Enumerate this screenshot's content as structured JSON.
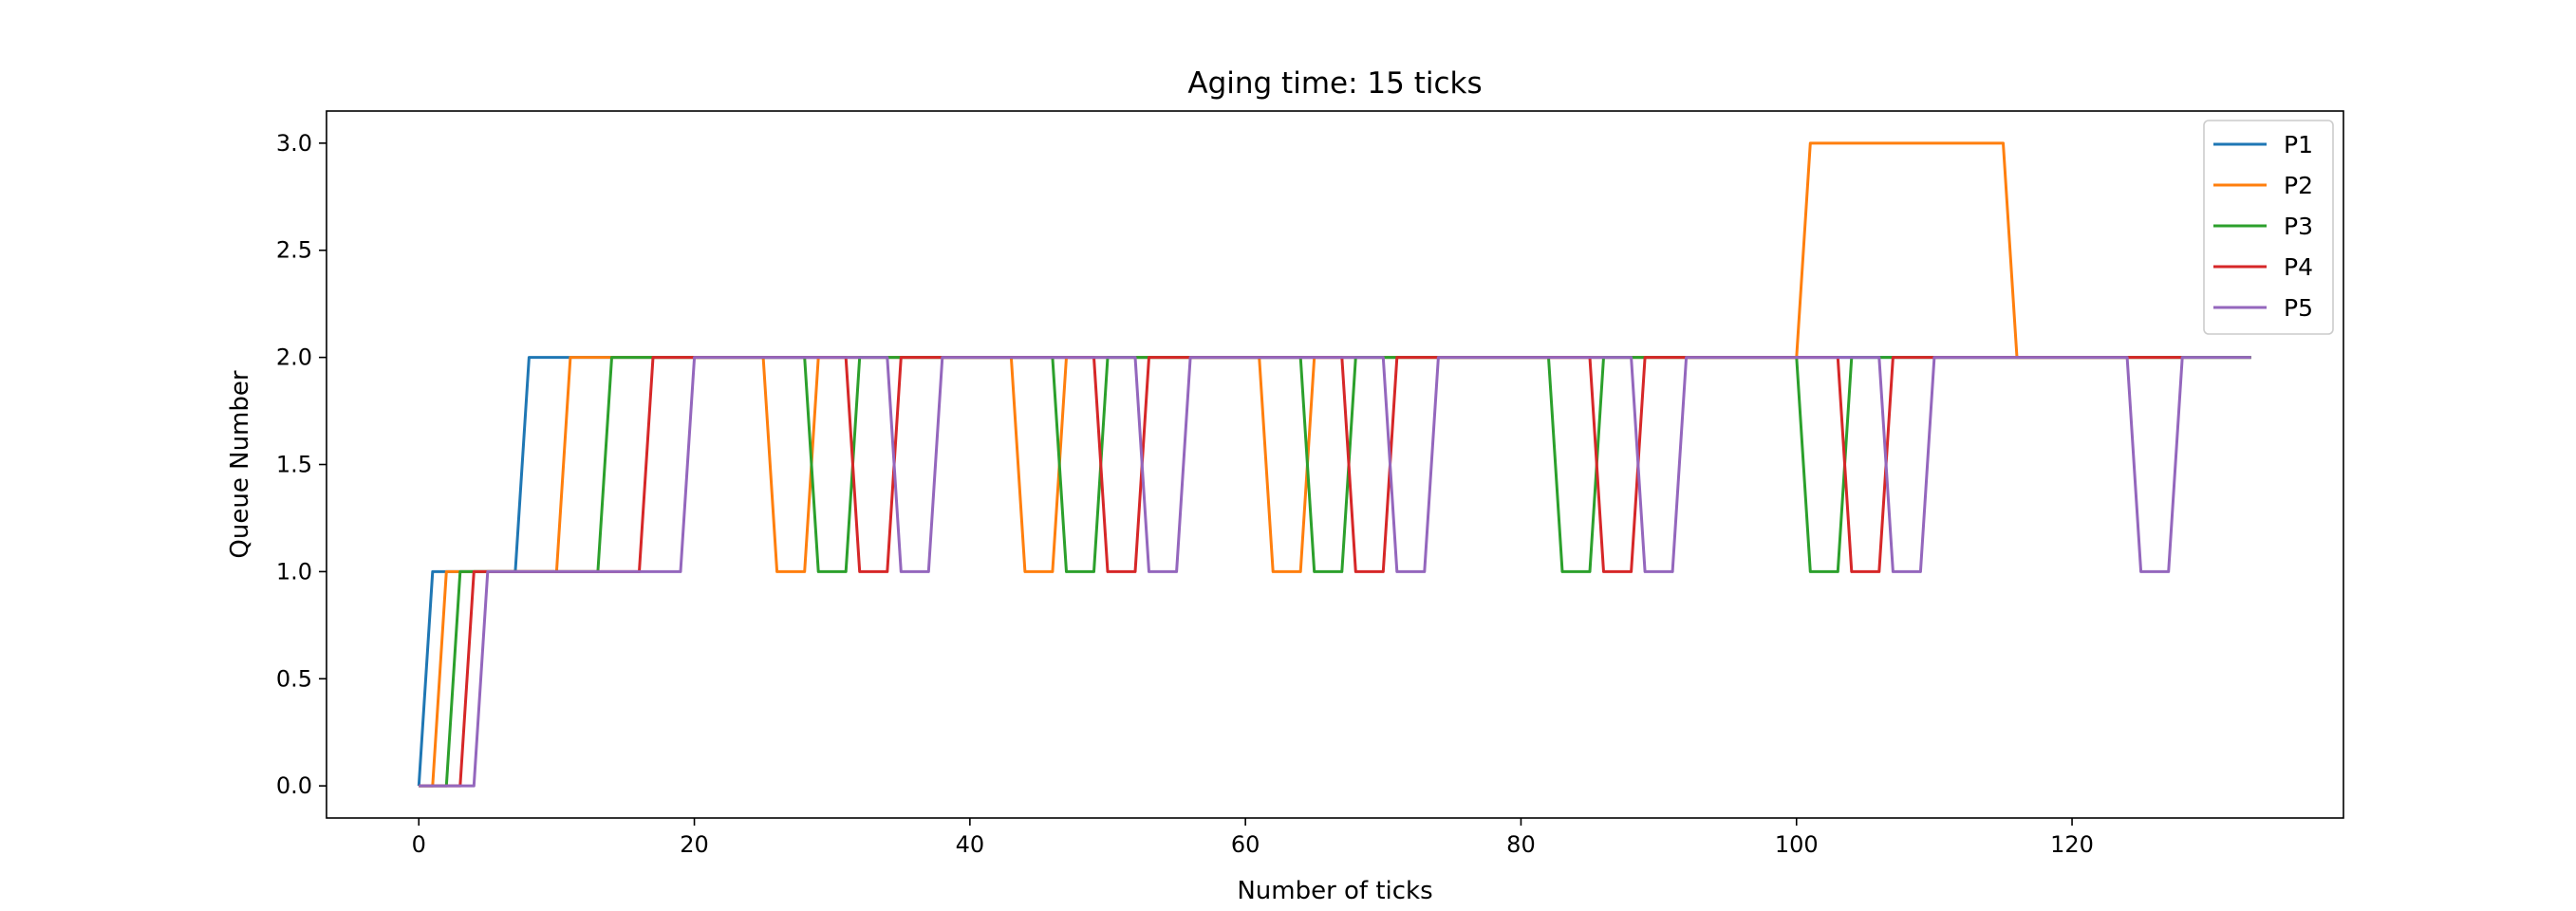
{
  "chart_data": {
    "type": "line",
    "title": "Aging time: 15 ticks",
    "xlabel": "Number of ticks",
    "ylabel": "Queue Number",
    "xlim": [
      -6.7,
      139.7
    ],
    "ylim": [
      -0.15,
      3.15
    ],
    "xticks": [
      0,
      20,
      40,
      60,
      80,
      100,
      120
    ],
    "yticks": [
      0.0,
      0.5,
      1.0,
      1.5,
      2.0,
      2.5,
      3.0
    ],
    "xtick_labels": [
      "0",
      "20",
      "40",
      "60",
      "80",
      "100",
      "120"
    ],
    "ytick_labels": [
      "0.0",
      "0.5",
      "1.0",
      "1.5",
      "2.0",
      "2.5",
      "3.0"
    ],
    "grid": false,
    "legend_position": "upper right",
    "series": [
      {
        "name": "P1",
        "color": "#1f77b4",
        "points": [
          [
            0,
            0
          ],
          [
            1,
            1
          ],
          [
            7,
            1
          ],
          [
            8,
            2
          ],
          [
            133,
            2
          ]
        ]
      },
      {
        "name": "P2",
        "color": "#ff7f0e",
        "points": [
          [
            0,
            0
          ],
          [
            1,
            0
          ],
          [
            2,
            1
          ],
          [
            10,
            1
          ],
          [
            11,
            2
          ],
          [
            25,
            2
          ],
          [
            26,
            1
          ],
          [
            28,
            1
          ],
          [
            29,
            2
          ],
          [
            43,
            2
          ],
          [
            44,
            1
          ],
          [
            46,
            1
          ],
          [
            47,
            2
          ],
          [
            61,
            2
          ],
          [
            62,
            1
          ],
          [
            64,
            1
          ],
          [
            65,
            2
          ],
          [
            100,
            2
          ],
          [
            101,
            3
          ],
          [
            115,
            3
          ],
          [
            116,
            2
          ],
          [
            133,
            2
          ]
        ]
      },
      {
        "name": "P3",
        "color": "#2ca02c",
        "points": [
          [
            0,
            0
          ],
          [
            2,
            0
          ],
          [
            3,
            1
          ],
          [
            13,
            1
          ],
          [
            14,
            2
          ],
          [
            28,
            2
          ],
          [
            29,
            1
          ],
          [
            31,
            1
          ],
          [
            32,
            2
          ],
          [
            46,
            2
          ],
          [
            47,
            1
          ],
          [
            49,
            1
          ],
          [
            50,
            2
          ],
          [
            64,
            2
          ],
          [
            65,
            1
          ],
          [
            67,
            1
          ],
          [
            68,
            2
          ],
          [
            82,
            2
          ],
          [
            83,
            1
          ],
          [
            85,
            1
          ],
          [
            86,
            2
          ],
          [
            100,
            2
          ],
          [
            101,
            1
          ],
          [
            103,
            1
          ],
          [
            104,
            2
          ],
          [
            133,
            2
          ]
        ]
      },
      {
        "name": "P4",
        "color": "#d62728",
        "points": [
          [
            0,
            0
          ],
          [
            3,
            0
          ],
          [
            4,
            1
          ],
          [
            16,
            1
          ],
          [
            17,
            2
          ],
          [
            31,
            2
          ],
          [
            32,
            1
          ],
          [
            34,
            1
          ],
          [
            35,
            2
          ],
          [
            49,
            2
          ],
          [
            50,
            1
          ],
          [
            52,
            1
          ],
          [
            53,
            2
          ],
          [
            67,
            2
          ],
          [
            68,
            1
          ],
          [
            70,
            1
          ],
          [
            71,
            2
          ],
          [
            85,
            2
          ],
          [
            86,
            1
          ],
          [
            88,
            1
          ],
          [
            89,
            2
          ],
          [
            103,
            2
          ],
          [
            104,
            1
          ],
          [
            106,
            1
          ],
          [
            107,
            2
          ],
          [
            128,
            2
          ]
        ]
      },
      {
        "name": "P5",
        "color": "#9467bd",
        "points": [
          [
            0,
            0
          ],
          [
            4,
            0
          ],
          [
            5,
            1
          ],
          [
            19,
            1
          ],
          [
            20,
            2
          ],
          [
            34,
            2
          ],
          [
            35,
            1
          ],
          [
            37,
            1
          ],
          [
            38,
            2
          ],
          [
            52,
            2
          ],
          [
            53,
            1
          ],
          [
            55,
            1
          ],
          [
            56,
            2
          ],
          [
            70,
            2
          ],
          [
            71,
            1
          ],
          [
            73,
            1
          ],
          [
            74,
            2
          ],
          [
            88,
            2
          ],
          [
            89,
            1
          ],
          [
            91,
            1
          ],
          [
            92,
            2
          ],
          [
            106,
            2
          ],
          [
            107,
            1
          ],
          [
            109,
            1
          ],
          [
            110,
            2
          ],
          [
            124,
            2
          ],
          [
            125,
            1
          ],
          [
            127,
            1
          ],
          [
            128,
            2
          ],
          [
            133,
            2
          ]
        ]
      }
    ]
  }
}
